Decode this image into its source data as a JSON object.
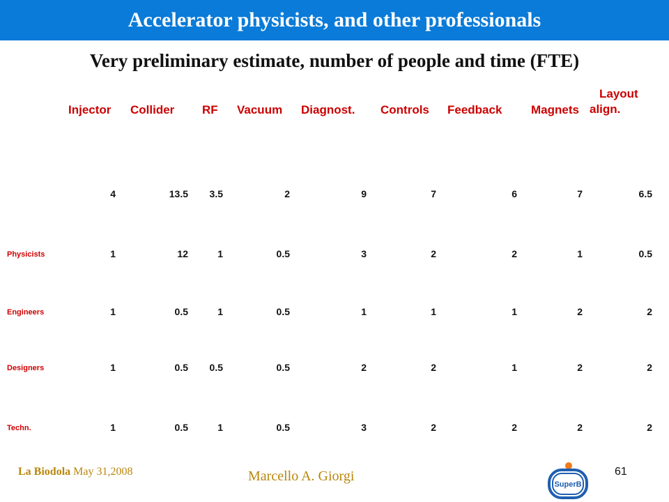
{
  "slide": {
    "title": "Accelerator physicists, and other professionals",
    "subtitle": "Very preliminary estimate, number of people and time (FTE)",
    "page_number": "61",
    "footer_place_bold": "La Biodola",
    "footer_date": "May 31,2008",
    "footer_author": "Marcello A. Giorgi",
    "logo_text": "SuperB"
  },
  "table": {
    "columns": [
      "Injector",
      "Collider",
      "RF",
      "Vacuum",
      "Diagnost.",
      "Controls",
      "Feedback",
      "Magnets"
    ],
    "layout_col_line1": "Layout",
    "layout_col_line2": "align.",
    "rows": [
      {
        "label": "",
        "values": [
          "4",
          "13.5",
          "3.5",
          "2",
          "9",
          "7",
          "6",
          "7",
          "6.5"
        ]
      },
      {
        "label": "Physicists",
        "values": [
          "1",
          "12",
          "1",
          "0.5",
          "3",
          "2",
          "2",
          "1",
          "0.5"
        ]
      },
      {
        "label": "Engineers",
        "values": [
          "1",
          "0.5",
          "1",
          "0.5",
          "1",
          "1",
          "1",
          "2",
          "2"
        ]
      },
      {
        "label": "Designers",
        "values": [
          "1",
          "0.5",
          "0.5",
          "0.5",
          "2",
          "2",
          "1",
          "2",
          "2"
        ]
      },
      {
        "label": "Techn.",
        "values": [
          "1",
          "0.5",
          "1",
          "0.5",
          "3",
          "2",
          "2",
          "2",
          "2"
        ]
      }
    ]
  },
  "colors": {
    "title_bar": "#0a7bd8",
    "header_text": "#cc0000",
    "footer_text": "#b8860b",
    "logo_blue": "#1f5fb0",
    "logo_orange": "#f07a1a"
  }
}
